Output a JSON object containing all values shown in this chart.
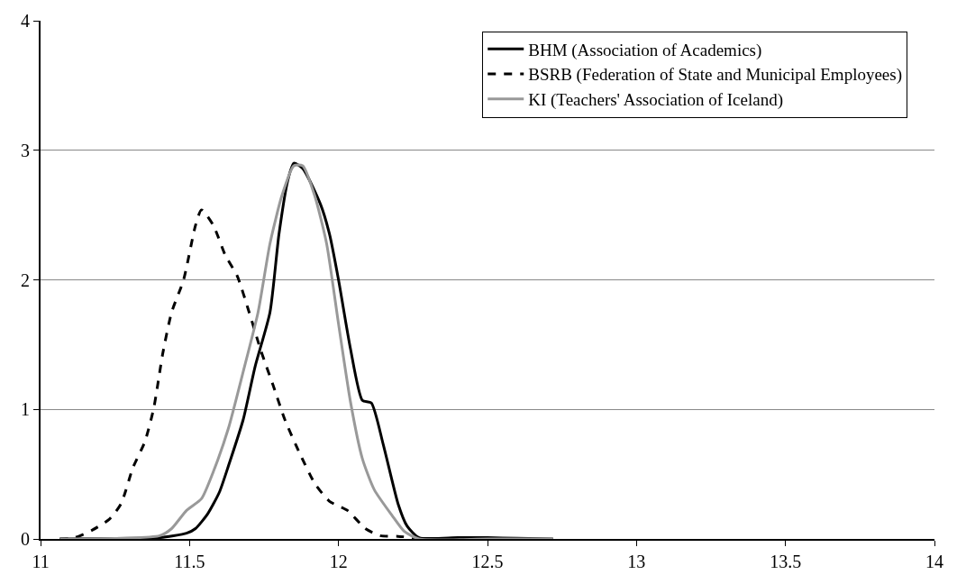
{
  "chart_data": {
    "type": "line",
    "xlim": [
      11,
      14
    ],
    "ylim": [
      0,
      4
    ],
    "xticks": [
      11,
      11.5,
      12,
      12.5,
      13,
      13.5,
      14
    ],
    "yticks": [
      0,
      1,
      2,
      3,
      4
    ],
    "grid": "y",
    "legend": "top right",
    "marker": "none",
    "series": [
      {
        "name": "BHM (Association of Academics)",
        "color": "#000000",
        "line_style": "solid",
        "x": [
          11.065,
          11.344,
          11.4,
          11.49,
          11.52,
          11.56,
          11.6,
          11.63,
          11.68,
          11.72,
          11.77,
          11.8,
          11.83,
          11.85,
          11.88,
          11.94,
          11.97,
          12.0,
          12.04,
          12.08,
          12.11,
          12.15,
          12.2,
          12.23,
          12.27,
          12.4,
          12.5,
          12.6,
          12.72
        ],
        "values": [
          0,
          0.005,
          0.01,
          0.044,
          0.08,
          0.19,
          0.36,
          0.56,
          0.92,
          1.33,
          1.75,
          2.35,
          2.77,
          2.9,
          2.86,
          2.58,
          2.35,
          2.0,
          1.47,
          1.07,
          1.05,
          0.73,
          0.27,
          0.1,
          0.01,
          0.01,
          0.01,
          0.005,
          0
        ]
      },
      {
        "name": "BSRB (Federation of State and Municipal Employees)",
        "color": "#000000",
        "line_style": "dashed",
        "x": [
          11.065,
          11.115,
          11.175,
          11.23,
          11.27,
          11.31,
          11.35,
          11.38,
          11.41,
          11.44,
          11.48,
          11.52,
          11.54,
          11.58,
          11.62,
          11.66,
          11.7,
          11.74,
          11.78,
          11.82,
          11.87,
          11.92,
          11.97,
          12.03,
          12.09,
          12.14,
          12.2,
          12.3
        ],
        "values": [
          0,
          0.01,
          0.07,
          0.15,
          0.27,
          0.55,
          0.75,
          1.01,
          1.43,
          1.75,
          2.0,
          2.42,
          2.54,
          2.42,
          2.19,
          2.03,
          1.75,
          1.45,
          1.19,
          0.92,
          0.66,
          0.43,
          0.29,
          0.22,
          0.08,
          0.025,
          0.02,
          0
        ]
      },
      {
        "name": "KI (Teachers' Association of Iceland)",
        "color": "#999999",
        "line_style": "solid",
        "x": [
          11.065,
          11.4,
          11.44,
          11.49,
          11.54,
          11.58,
          11.63,
          11.68,
          11.73,
          11.77,
          11.81,
          11.85,
          11.88,
          11.92,
          11.96,
          12.0,
          12.04,
          12.08,
          12.12,
          12.18,
          12.22,
          12.27,
          12.5,
          12.72
        ],
        "values": [
          0,
          0.025,
          0.08,
          0.22,
          0.31,
          0.52,
          0.85,
          1.29,
          1.75,
          2.28,
          2.65,
          2.88,
          2.88,
          2.65,
          2.28,
          1.66,
          1.06,
          0.62,
          0.38,
          0.18,
          0.06,
          0,
          0,
          0
        ]
      }
    ]
  }
}
